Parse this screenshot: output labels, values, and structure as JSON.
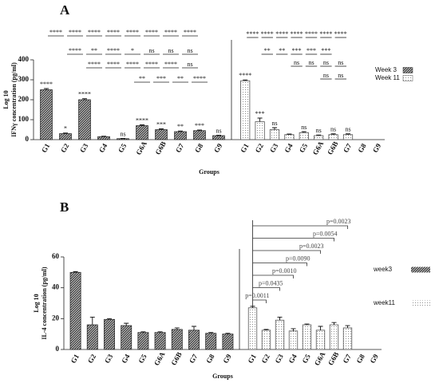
{
  "chart_data": [
    {
      "type": "bar",
      "title": "A",
      "ylabel": "Log 10",
      "ylabel_sub": "IFNγ concentration (pg/ml)",
      "xlabel": "Groups",
      "categories": [
        "G1",
        "G2",
        "G3",
        "G4",
        "G5",
        "G6A",
        "G6B",
        "G7",
        "G8",
        "G9"
      ],
      "ylim": [
        0,
        400
      ],
      "yticks": [
        0,
        100,
        200,
        300,
        400
      ],
      "series": [
        {
          "name": "Week 3",
          "color": "#2e2e2e",
          "pattern": "hatch",
          "values": [
            250,
            30,
            200,
            15,
            5,
            70,
            50,
            40,
            45,
            20
          ],
          "errors": [
            6,
            3,
            5,
            2,
            1,
            4,
            4,
            3,
            3,
            2
          ],
          "sig_labels": [
            "****",
            "*",
            "****",
            null,
            "ns",
            "****",
            "***",
            "**",
            "***",
            "ns"
          ],
          "comparisons": [
            [
              "****",
              "****",
              "****",
              "****",
              "****",
              "****",
              "****",
              "****"
            ],
            [
              "****",
              "**",
              "****",
              "*",
              "ns",
              "ns",
              "ns"
            ],
            [
              "****",
              "****",
              "****",
              "****",
              "****",
              "ns"
            ],
            [
              "**",
              "***",
              "**",
              "****"
            ]
          ]
        },
        {
          "name": "Week 11",
          "color": "#555555",
          "pattern": "dots",
          "values": [
            295,
            90,
            50,
            25,
            35,
            20,
            25,
            25,
            null,
            null
          ],
          "errors": [
            4,
            18,
            10,
            3,
            5,
            3,
            4,
            4,
            null,
            null
          ],
          "sig_labels": [
            "****",
            "***",
            "ns",
            null,
            "ns",
            "ns",
            "ns",
            "ns",
            null,
            null
          ],
          "comparisons": [
            [
              "****",
              "****",
              "****",
              "****",
              "****",
              "****",
              "****"
            ],
            [
              "**",
              "**",
              "***",
              "***",
              "***"
            ],
            [
              "ns",
              "ns",
              "ns",
              "ns"
            ],
            [
              "ns",
              "ns"
            ]
          ]
        }
      ]
    },
    {
      "type": "bar",
      "title": "B",
      "ylabel": "Log 10",
      "ylabel_sub": "IL-4 concentration (pg/ml)",
      "xlabel": "Groups",
      "categories": [
        "G1",
        "G2",
        "G3",
        "G4",
        "G5",
        "G6A",
        "G6B",
        "G7",
        "G8",
        "G9"
      ],
      "ylim": [
        0,
        60
      ],
      "yticks": [
        0,
        20,
        40,
        60
      ],
      "series": [
        {
          "name": "week3",
          "color": "#2e2e2e",
          "pattern": "hatch",
          "values": [
            50,
            16,
            19.5,
            15.5,
            11,
            11,
            13,
            12.5,
            10.5,
            10
          ],
          "errors": [
            0.5,
            5,
            0.5,
            1.5,
            0.5,
            0.5,
            1,
            2.5,
            0.5,
            0.5
          ]
        },
        {
          "name": "week11",
          "color": "#555555",
          "pattern": "dots",
          "values": [
            27,
            12.5,
            19,
            12,
            16,
            12.5,
            16,
            14,
            null,
            null
          ],
          "errors": [
            1,
            0.5,
            2,
            1.5,
            0.5,
            2.5,
            1.5,
            1.5,
            null,
            null
          ],
          "pvalues": [
            "p=0.0011",
            "p=0.0435",
            "p=0.0010",
            "p=0.0090",
            "p=0.0023",
            "p=0.0054",
            "p=0.0023"
          ]
        }
      ]
    }
  ]
}
